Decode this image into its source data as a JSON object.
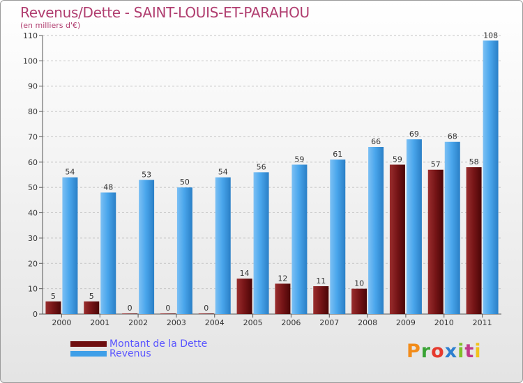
{
  "header": {
    "title": "Revenus/Dette - SAINT-LOUIS-ET-PARAHOU",
    "subtitle": "(en milliers d'€)"
  },
  "legend": {
    "debt_label": "Montant de la Dette",
    "revenue_label": "Revenus"
  },
  "logo": {
    "text": "Proxiti"
  },
  "colors": {
    "debt": "#6e0f10",
    "revenue": "#3f9fe8",
    "title": "#b03d6f",
    "legend_text": "#5a55ff"
  },
  "chart_data": {
    "type": "bar",
    "title": "Revenus/Dette - SAINT-LOUIS-ET-PARAHOU",
    "ylabel": "(en milliers d'€)",
    "ylim": [
      0,
      110
    ],
    "yticks": [
      0,
      10,
      20,
      30,
      40,
      50,
      60,
      70,
      80,
      90,
      100,
      110
    ],
    "grid": true,
    "categories": [
      "2000",
      "2001",
      "2002",
      "2003",
      "2004",
      "2005",
      "2006",
      "2007",
      "2008",
      "2009",
      "2010",
      "2011"
    ],
    "series": [
      {
        "name": "Montant de la Dette",
        "values": [
          5,
          5,
          0,
          0,
          0,
          14,
          12,
          11,
          10,
          59,
          57,
          58
        ]
      },
      {
        "name": "Revenus",
        "values": [
          54,
          48,
          53,
          50,
          54,
          56,
          59,
          61,
          66,
          69,
          68,
          108
        ]
      }
    ]
  }
}
